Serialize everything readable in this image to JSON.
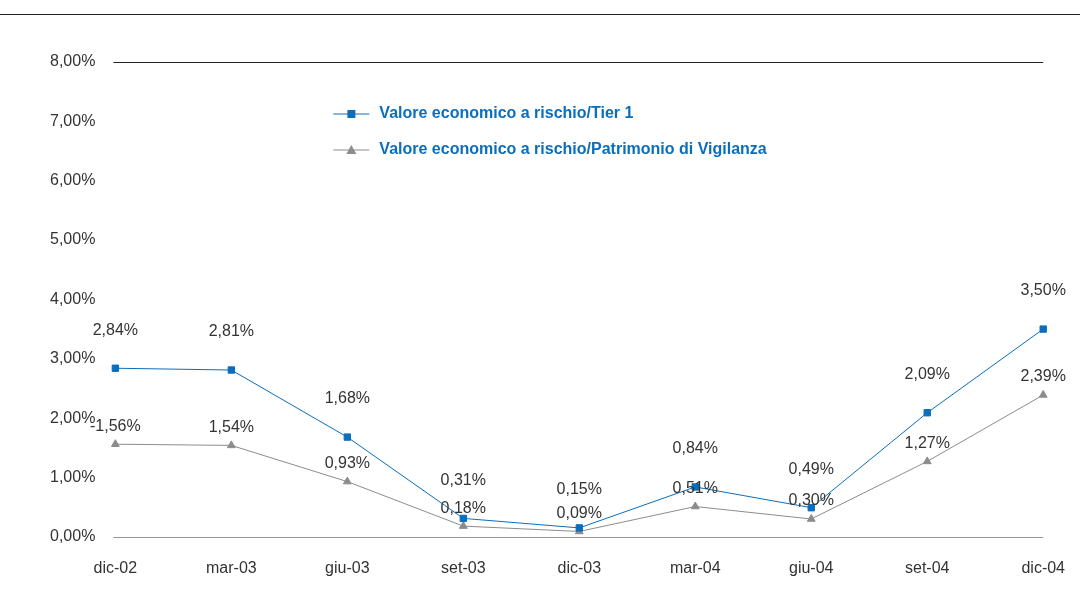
{
  "chart_data": {
    "type": "line",
    "categories": [
      "dic-02",
      "mar-03",
      "giu-03",
      "set-03",
      "dic-03",
      "mar-04",
      "giu-04",
      "set-04",
      "dic-04"
    ],
    "series": [
      {
        "name": "Valore economico a rischio/Tier 1",
        "color": "#0a6ebd",
        "marker": "square",
        "values": [
          2.84,
          2.81,
          1.68,
          0.31,
          0.15,
          0.84,
          0.49,
          2.09,
          3.5
        ],
        "value_labels": [
          "2,84%",
          "2,81%",
          "1,68%",
          "0,31%",
          "0,15%",
          "0,84%",
          "0,49%",
          "2,09%",
          "3,50%"
        ]
      },
      {
        "name": "Valore economico a rischio/Patrimonio di Vigilanza",
        "color": "#8c8c8c",
        "marker": "triangle",
        "values": [
          1.56,
          1.54,
          0.93,
          0.18,
          0.09,
          0.51,
          0.3,
          1.27,
          2.39
        ],
        "value_labels": [
          null,
          "1,54%",
          "0,93%",
          "0,18%",
          "0,09%",
          "0,51%",
          "0,30%",
          "1,27%",
          "2,39%"
        ]
      }
    ],
    "ylim": [
      0,
      8
    ],
    "yticks": [
      {
        "value": 0,
        "label": "0,00%"
      },
      {
        "value": 1,
        "label": "1,00%"
      },
      {
        "value": 2,
        "label": "2,00%"
      },
      {
        "value": 3,
        "label": "3,00%"
      },
      {
        "value": 4,
        "label": "4,00%"
      },
      {
        "value": 5,
        "label": "5,00%"
      },
      {
        "value": 6,
        "label": "6,00%"
      },
      {
        "value": 7,
        "label": "7,00%"
      },
      {
        "value": 8,
        "label": "8,00%"
      }
    ],
    "annotations": [
      {
        "text": "-1,56%",
        "x": "dic-02",
        "y": 1.56
      }
    ],
    "grid": false,
    "legend": "top left"
  }
}
